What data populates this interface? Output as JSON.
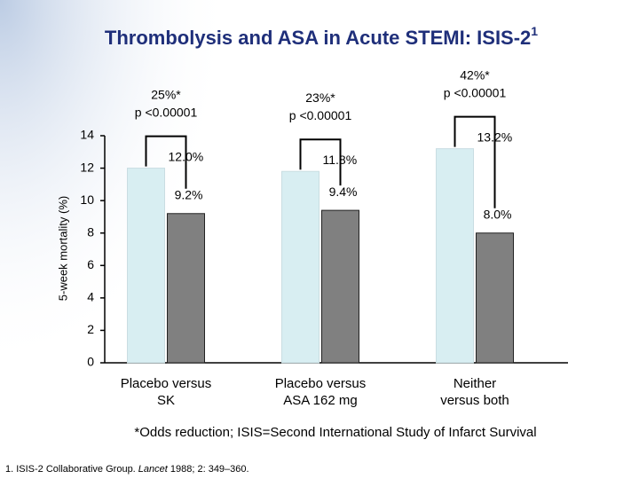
{
  "chart_data": {
    "type": "bar",
    "title": "Thrombolysis and ASA in Acute STEMI: ISIS-2",
    "title_superscript": "1",
    "y_label": "5-week mortality (%)",
    "categories": [
      [
        "Placebo versus",
        "SK"
      ],
      [
        "Placebo versus",
        "ASA 162 mg"
      ],
      [
        "Neither",
        "versus both"
      ]
    ],
    "series": [
      {
        "color": "#d8eef2",
        "values": [
          12.0,
          11.8,
          13.2
        ],
        "value_labels": [
          "12.0%",
          "11.8%",
          "13.2%"
        ]
      },
      {
        "color": "#808080",
        "values": [
          9.2,
          9.4,
          8.0
        ],
        "value_labels": [
          "9.2%",
          "9.4%",
          "8.0%"
        ]
      }
    ],
    "annotations": [
      [
        "25%*",
        "p <0.00001"
      ],
      [
        "23%*",
        "p <0.00001"
      ],
      [
        "42%*",
        "p <0.00001"
      ]
    ],
    "ylim": [
      0,
      14
    ],
    "yticks": [
      0,
      2,
      4,
      6,
      8,
      10,
      12,
      14
    ],
    "footnote": "*Odds reduction; ISIS=Second International Study of Infarct Survival",
    "reference": [
      "1. ISIS-2 Collaborative Group. ",
      "Lancet",
      " 1988; 2: 349–360."
    ]
  }
}
